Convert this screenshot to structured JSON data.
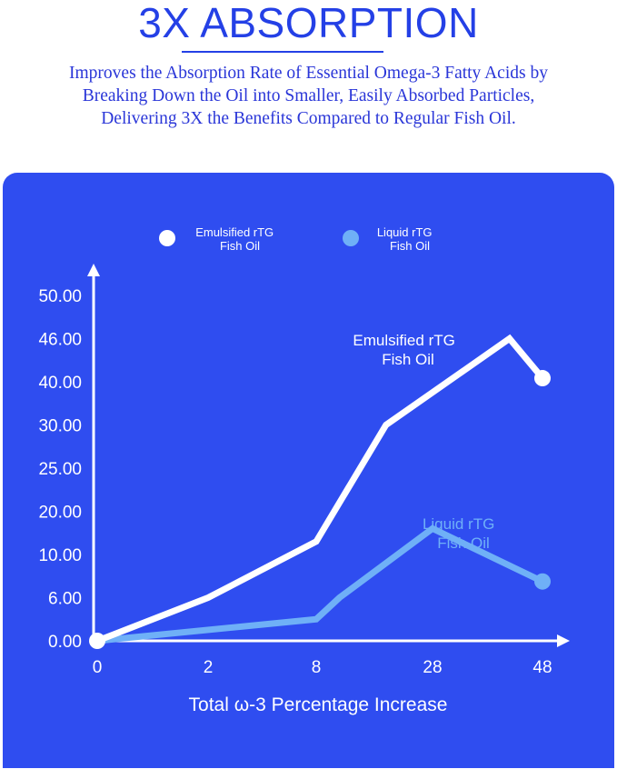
{
  "header": {
    "title": "3X ABSORPTION",
    "subtitle_lines": [
      "Improves the Absorption Rate of Essential Omega-3 Fatty Acids by",
      "Breaking Down the Oil into Smaller, Easily Absorbed Particles,",
      "Delivering 3X the Benefits Compared to Regular Fish Oil."
    ]
  },
  "colors": {
    "title": "#2440e6",
    "panel": "#2f4df0",
    "emulsified": "#ffffff",
    "liquid": "#6fb0f7"
  },
  "chart_data": {
    "type": "line",
    "title": "",
    "xlabel": "Total ω-3 Percentage Increase",
    "ylabel": "",
    "x_ticks": [
      "0",
      "2",
      "8",
      "28",
      "48"
    ],
    "y_ticks": [
      "0.00",
      "6.00",
      "10.00",
      "20.00",
      "25.00",
      "30.00",
      "40.00",
      "46.00",
      "50.00"
    ],
    "legend": {
      "placement": "top",
      "items": [
        {
          "line1": "Emulsified rTG",
          "line2": "Fish Oil"
        },
        {
          "line1": "Liquid rTG",
          "line2": "Fish Oil"
        }
      ]
    },
    "series": [
      {
        "name": "Emulsified rTG Fish Oil",
        "label_lines": [
          "Emulsified rTG",
          "Fish Oil"
        ],
        "points": [
          {
            "x": 0,
            "y": 0.0
          },
          {
            "x": 2,
            "y": 6.0
          },
          {
            "x": 8,
            "y": 13.0
          },
          {
            "x": 20,
            "y": 30.0
          },
          {
            "x": 42,
            "y": 46.0
          },
          {
            "x": 48,
            "y": 40.5
          }
        ]
      },
      {
        "name": "Liquid rTG Fish Oil",
        "label_lines": [
          "Liquid rTG",
          "Fish Oil"
        ],
        "points": [
          {
            "x": 0,
            "y": 0.0
          },
          {
            "x": 8,
            "y": 3.0
          },
          {
            "x": 12,
            "y": 6.0
          },
          {
            "x": 28,
            "y": 16.0
          },
          {
            "x": 48,
            "y": 7.5
          }
        ]
      }
    ]
  }
}
